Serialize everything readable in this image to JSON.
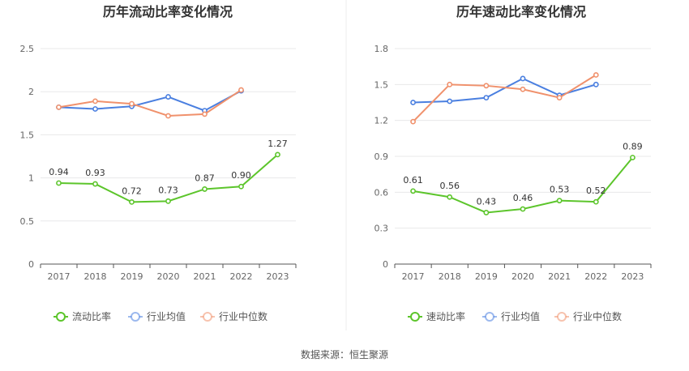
{
  "source": "数据来源：恒生聚源",
  "colors": {
    "company": "#5cc52b",
    "industry_avg": "#4a7fe0",
    "industry_median": "#f0916c",
    "grid": "#e8e8ea",
    "axis": "#555555"
  },
  "chart_data": [
    {
      "type": "line",
      "title": "历年流动比率变化情况",
      "categories": [
        "2017",
        "2018",
        "2019",
        "2020",
        "2021",
        "2022",
        "2023"
      ],
      "ylim": [
        0,
        2.5
      ],
      "yticks": [
        "0",
        "0.5",
        "1",
        "1.5",
        "2",
        "2.5"
      ],
      "grid": true,
      "legend_position": "bottom",
      "series": [
        {
          "name": "流动比率",
          "color": "#5cc52b",
          "values": [
            0.94,
            0.93,
            0.72,
            0.73,
            0.87,
            0.9,
            1.27
          ],
          "labels": [
            "0.94",
            "0.93",
            "0.72",
            "0.73",
            "0.87",
            "0.90",
            "1.27"
          ]
        },
        {
          "name": "行业均值",
          "color": "#4a7fe0",
          "values": [
            1.82,
            1.8,
            1.83,
            1.94,
            1.78,
            2.01,
            null
          ]
        },
        {
          "name": "行业中位数",
          "color": "#f0916c",
          "values": [
            1.82,
            1.89,
            1.86,
            1.72,
            1.74,
            2.02,
            null
          ]
        }
      ]
    },
    {
      "type": "line",
      "title": "历年速动比率变化情况",
      "categories": [
        "2017",
        "2018",
        "2019",
        "2020",
        "2021",
        "2022",
        "2023"
      ],
      "ylim": [
        0,
        1.8
      ],
      "yticks": [
        "0",
        "0.3",
        "0.6",
        "0.9",
        "1.2",
        "1.5",
        "1.8"
      ],
      "grid": true,
      "legend_position": "bottom",
      "series": [
        {
          "name": "速动比率",
          "color": "#5cc52b",
          "values": [
            0.61,
            0.56,
            0.43,
            0.46,
            0.53,
            0.52,
            0.89
          ],
          "labels": [
            "0.61",
            "0.56",
            "0.43",
            "0.46",
            "0.53",
            "0.52",
            "0.89"
          ]
        },
        {
          "name": "行业均值",
          "color": "#4a7fe0",
          "values": [
            1.35,
            1.36,
            1.39,
            1.55,
            1.41,
            1.5,
            null
          ]
        },
        {
          "name": "行业中位数",
          "color": "#f0916c",
          "values": [
            1.19,
            1.5,
            1.49,
            1.46,
            1.39,
            1.58,
            null
          ]
        }
      ]
    }
  ]
}
